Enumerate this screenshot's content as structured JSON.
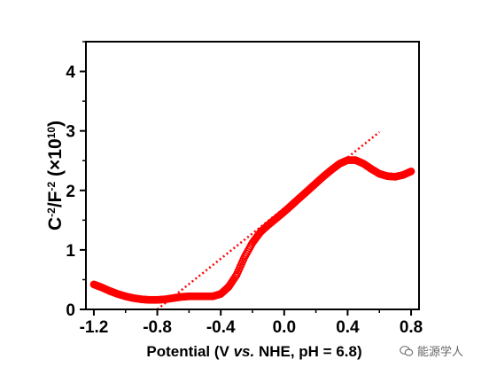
{
  "chart_data": {
    "type": "scatter",
    "xlabel": {
      "prefix": "Potential (V ",
      "italic": "vs.",
      "suffix": " NHE, pH = 6.8)"
    },
    "ylabel": {
      "base": "C",
      "sup1": "-2",
      "mid": "/F",
      "sup2": "-2",
      "suffix": " (×10",
      "sup3": "10",
      "close": ")"
    },
    "xlim": [
      -1.25,
      0.85
    ],
    "ylim": [
      0,
      4.5
    ],
    "xticks": [
      -1.2,
      -0.8,
      -0.4,
      0.0,
      0.4,
      0.8
    ],
    "xtick_labels": [
      "-1.2",
      "-0.8",
      "-0.4",
      "0.0",
      "0.4",
      "0.8"
    ],
    "yticks": [
      0,
      1,
      2,
      3,
      4
    ],
    "ytick_labels": [
      "0",
      "1",
      "2",
      "3",
      "4"
    ],
    "grid": false,
    "series": [
      {
        "style": "markers",
        "color": "#ff0000",
        "points": [
          [
            -1.2,
            0.42
          ],
          [
            -1.15,
            0.37
          ],
          [
            -1.1,
            0.31
          ],
          [
            -1.05,
            0.26
          ],
          [
            -1.0,
            0.22
          ],
          [
            -0.95,
            0.19
          ],
          [
            -0.9,
            0.17
          ],
          [
            -0.85,
            0.16
          ],
          [
            -0.8,
            0.16
          ],
          [
            -0.75,
            0.17
          ],
          [
            -0.7,
            0.19
          ],
          [
            -0.65,
            0.21
          ],
          [
            -0.6,
            0.22
          ],
          [
            -0.55,
            0.22
          ],
          [
            -0.5,
            0.22
          ],
          [
            -0.45,
            0.22
          ],
          [
            -0.4,
            0.26
          ],
          [
            -0.35,
            0.38
          ],
          [
            -0.3,
            0.58
          ],
          [
            -0.25,
            0.88
          ],
          [
            -0.2,
            1.12
          ],
          [
            -0.15,
            1.3
          ],
          [
            -0.1,
            1.42
          ],
          [
            -0.05,
            1.53
          ],
          [
            0.0,
            1.64
          ],
          [
            0.05,
            1.76
          ],
          [
            0.1,
            1.88
          ],
          [
            0.15,
            2.0
          ],
          [
            0.2,
            2.12
          ],
          [
            0.25,
            2.24
          ],
          [
            0.3,
            2.35
          ],
          [
            0.35,
            2.45
          ],
          [
            0.4,
            2.51
          ],
          [
            0.45,
            2.51
          ],
          [
            0.5,
            2.45
          ],
          [
            0.55,
            2.36
          ],
          [
            0.6,
            2.28
          ],
          [
            0.65,
            2.24
          ],
          [
            0.7,
            2.23
          ],
          [
            0.75,
            2.26
          ],
          [
            0.8,
            2.32
          ]
        ]
      },
      {
        "style": "dotted-fit",
        "color": "#ff0000",
        "points": [
          [
            -0.8,
            0.0
          ],
          [
            0.6,
            2.98
          ]
        ]
      }
    ]
  },
  "watermark": {
    "icon": "wechat-icon",
    "text": "能源学人"
  }
}
